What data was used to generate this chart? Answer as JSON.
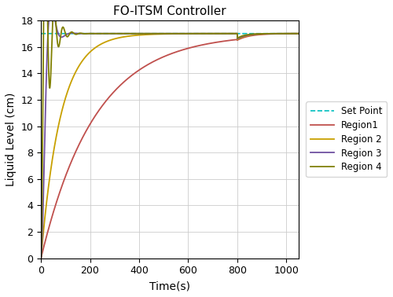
{
  "title": "FO-ITSM Controller",
  "xlabel": "Time(s)",
  "ylabel": "Liquid Level (cm)",
  "xlim": [
    0,
    1050
  ],
  "ylim": [
    0,
    18
  ],
  "yticks": [
    0,
    2,
    4,
    6,
    8,
    10,
    12,
    14,
    16,
    18
  ],
  "xticks": [
    0,
    200,
    400,
    600,
    800,
    1000
  ],
  "sp": 17,
  "disturbance_time": 800,
  "colors": {
    "setpoint": "#00BFBF",
    "region1": "#C0504D",
    "region2": "#C8A000",
    "region3": "#7050A0",
    "region4": "#808000"
  },
  "legend_labels": [
    "Set Point",
    "Region1",
    "Region 2",
    "Region 3",
    "Region 4"
  ],
  "background_color": "#ffffff",
  "grid_color": "#cccccc"
}
